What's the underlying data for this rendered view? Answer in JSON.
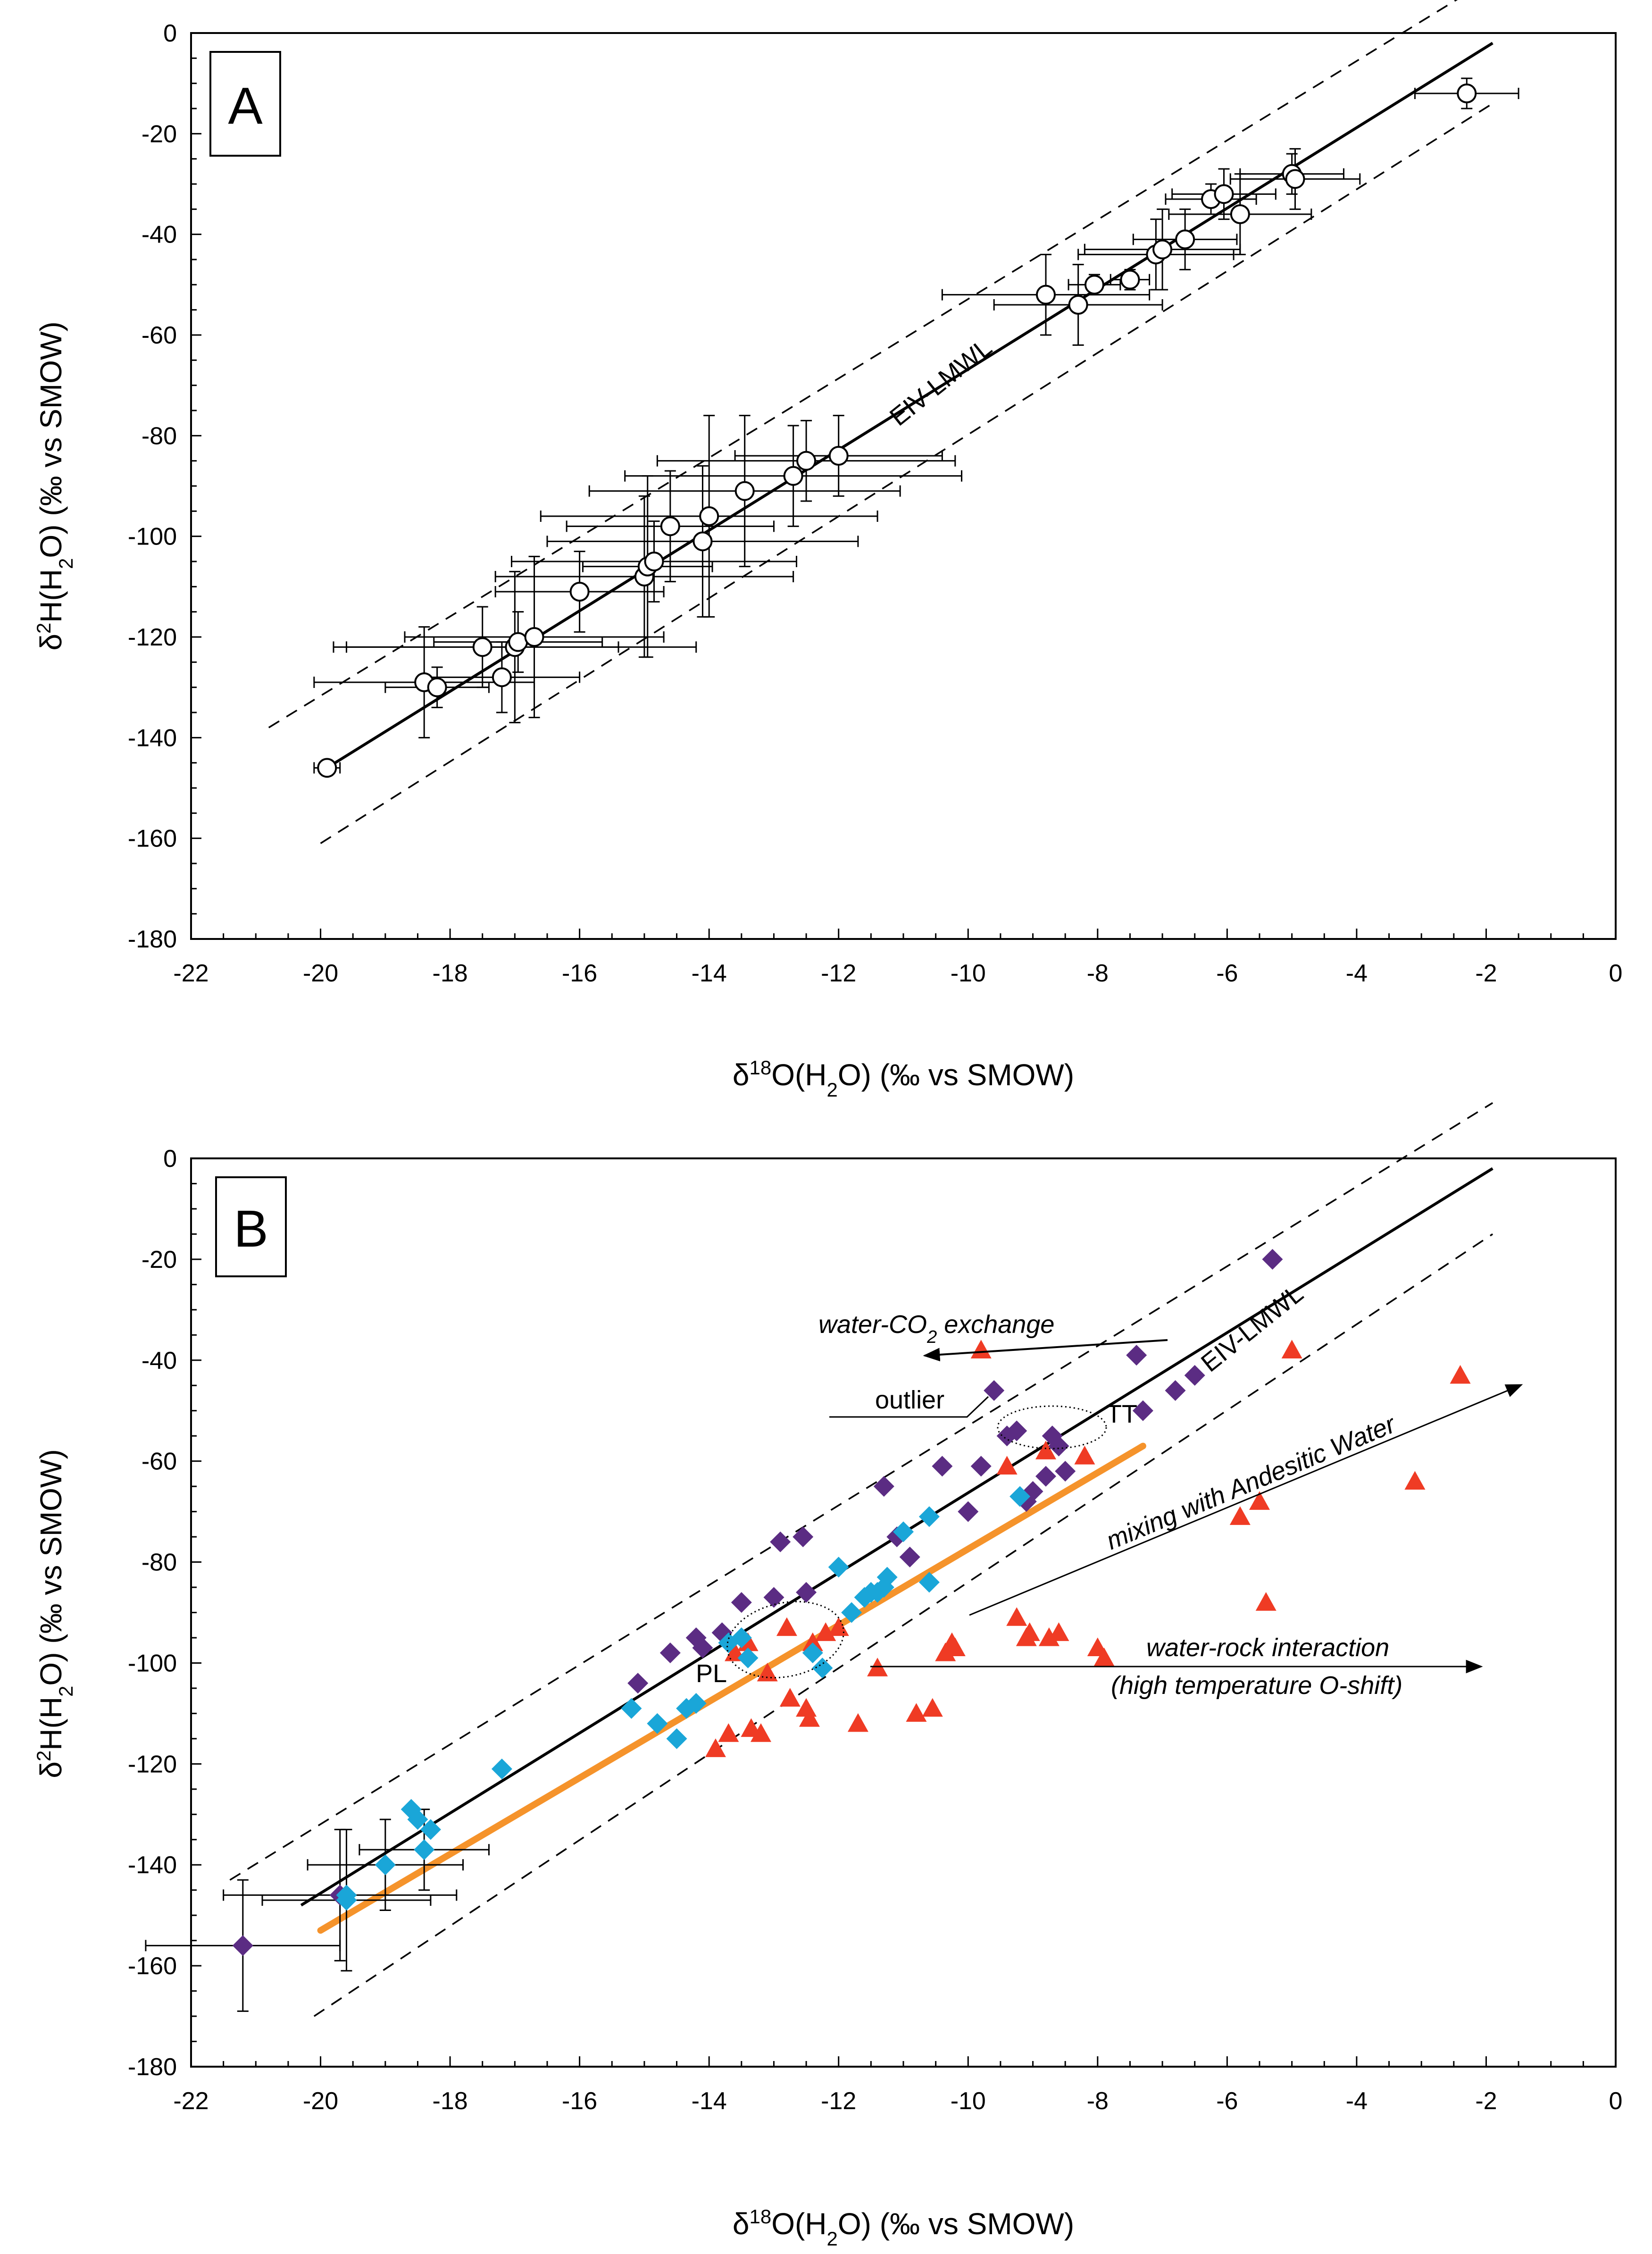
{
  "colors": {
    "black": "#000000",
    "purple": "#5b2c83",
    "cyan": "#1aa6d8",
    "red": "#ef3b24",
    "orange": "#f5932b",
    "white": "#ffffff"
  },
  "chart_data": [
    {
      "id": "A",
      "type": "scatter",
      "panel_label": "A",
      "xlabel": "δ18O(H2O) (‰ vs SMOW)",
      "ylabel": "δ2H(H2O) (‰ vs SMOW)",
      "xlim": [
        -22,
        0
      ],
      "ylim": [
        -180,
        0
      ],
      "x_ticks": [
        -22,
        -20,
        -18,
        -16,
        -14,
        -12,
        -10,
        -8,
        -6,
        -4,
        -2,
        0
      ],
      "y_ticks": [
        0,
        -20,
        -40,
        -60,
        -80,
        -100,
        -120,
        -140,
        -160,
        -180
      ],
      "legend": "none",
      "lmwl_label": "EIV-LMWL",
      "lmwl": {
        "x1": -19.9,
        "y1": -146,
        "x2": -1.9,
        "y2": -2
      },
      "band_upper": {
        "x1": -20.8,
        "y1": -138,
        "x2": -1.9,
        "y2": 11
      },
      "band_lower": {
        "x1": -20,
        "y1": -161,
        "x2": -1.9,
        "y2": -14
      },
      "points": [
        {
          "x": -19.9,
          "y": -146,
          "ex": 0.2,
          "ey": 1.5
        },
        {
          "x": -18.4,
          "y": -129,
          "ex": 1.7,
          "ey": 11
        },
        {
          "x": -18.2,
          "y": -130,
          "ex": 0.8,
          "ey": 4
        },
        {
          "x": -17.5,
          "y": -122,
          "ex": 2.1,
          "ey": 8
        },
        {
          "x": -17.2,
          "y": -128,
          "ex": 1.2,
          "ey": 7
        },
        {
          "x": -17.0,
          "y": -122,
          "ex": 2.8,
          "ey": 15
        },
        {
          "x": -16.95,
          "y": -121,
          "ex": 1.3,
          "ey": 6
        },
        {
          "x": -16.7,
          "y": -120,
          "ex": 2.0,
          "ey": 16
        },
        {
          "x": -16.0,
          "y": -111,
          "ex": 1.3,
          "ey": 8
        },
        {
          "x": -15.0,
          "y": -108,
          "ex": 2.3,
          "ey": 16
        },
        {
          "x": -14.95,
          "y": -106,
          "ex": 1.0,
          "ey": 18
        },
        {
          "x": -14.85,
          "y": -105,
          "ex": 2.2,
          "ey": 8
        },
        {
          "x": -14.6,
          "y": -98,
          "ex": 1.6,
          "ey": 11
        },
        {
          "x": -14.1,
          "y": -101,
          "ex": 2.4,
          "ey": 15
        },
        {
          "x": -14.0,
          "y": -96,
          "ex": 2.6,
          "ey": 20
        },
        {
          "x": -13.45,
          "y": -91,
          "ex": 2.4,
          "ey": 15
        },
        {
          "x": -12.7,
          "y": -88,
          "ex": 2.6,
          "ey": 10
        },
        {
          "x": -12.5,
          "y": -85,
          "ex": 2.3,
          "ey": 8
        },
        {
          "x": -12.0,
          "y": -84,
          "ex": 1.6,
          "ey": 8
        },
        {
          "x": -8.8,
          "y": -52,
          "ex": 1.6,
          "ey": 8
        },
        {
          "x": -8.3,
          "y": -54,
          "ex": 1.3,
          "ey": 8
        },
        {
          "x": -8.05,
          "y": -50,
          "ex": 0.4,
          "ey": 2
        },
        {
          "x": -7.5,
          "y": -49,
          "ex": 0.3,
          "ey": 2
        },
        {
          "x": -7.1,
          "y": -44,
          "ex": 1.2,
          "ey": 7
        },
        {
          "x": -7.0,
          "y": -43,
          "ex": 1.2,
          "ey": 8
        },
        {
          "x": -6.65,
          "y": -41,
          "ex": 0.8,
          "ey": 6
        },
        {
          "x": -6.25,
          "y": -33,
          "ex": 0.7,
          "ey": 3
        },
        {
          "x": -6.05,
          "y": -32,
          "ex": 0.8,
          "ey": 5
        },
        {
          "x": -5.8,
          "y": -36,
          "ex": 1.1,
          "ey": 8
        },
        {
          "x": -5.0,
          "y": -28,
          "ex": 0.8,
          "ey": 4
        },
        {
          "x": -4.95,
          "y": -29,
          "ex": 1.0,
          "ey": 6
        },
        {
          "x": -2.3,
          "y": -12,
          "ex": 0.8,
          "ey": 3
        }
      ]
    },
    {
      "id": "B",
      "type": "scatter",
      "panel_label": "B",
      "xlabel": "δ18O(H2O) (‰ vs SMOW)",
      "ylabel": "δ2H(H2O) (‰ vs SMOW)",
      "xlim": [
        -22,
        0
      ],
      "ylim": [
        -180,
        0
      ],
      "x_ticks": [
        -22,
        -20,
        -18,
        -16,
        -14,
        -12,
        -10,
        -8,
        -6,
        -4,
        -2,
        0
      ],
      "y_ticks": [
        0,
        -20,
        -40,
        -60,
        -80,
        -100,
        -120,
        -140,
        -160,
        -180
      ],
      "legend": "none",
      "lmwl_label": "EIV-LMWL",
      "lmwl": {
        "x1": -20.3,
        "y1": -148,
        "x2": -1.9,
        "y2": -2
      },
      "band_upper": {
        "x1": -21.4,
        "y1": -143,
        "x2": -1.9,
        "y2": 11
      },
      "band_lower": {
        "x1": -20.1,
        "y1": -170,
        "x2": -1.9,
        "y2": -15
      },
      "orange_line": {
        "x1": -20.0,
        "y1": -153,
        "x2": -7.3,
        "y2": -57
      },
      "annotations": {
        "co2": "water-CO",
        "co2_sub": "2",
        "co2_tail": " exchange",
        "outlier": "outlier",
        "andesitic": "mixing with Andesitic Water",
        "rock1": "water-rock interaction",
        "rock2": "(high temperature O-shift)",
        "tt": "TT",
        "pl": "PL"
      },
      "purple_points": [
        {
          "x": -21.2,
          "y": -156,
          "ex": 1.5,
          "ey": 13
        },
        {
          "x": -19.7,
          "y": -146,
          "ex": 1.8,
          "ey": 13
        },
        {
          "x": -15.1,
          "y": -104
        },
        {
          "x": -14.6,
          "y": -98
        },
        {
          "x": -14.2,
          "y": -95
        },
        {
          "x": -14.1,
          "y": -97
        },
        {
          "x": -13.8,
          "y": -94
        },
        {
          "x": -13.5,
          "y": -88
        },
        {
          "x": -13.0,
          "y": -87
        },
        {
          "x": -12.9,
          "y": -76
        },
        {
          "x": -12.55,
          "y": -75
        },
        {
          "x": -12.5,
          "y": -86
        },
        {
          "x": -11.3,
          "y": -65
        },
        {
          "x": -11.1,
          "y": -75
        },
        {
          "x": -10.9,
          "y": -79
        },
        {
          "x": -10.4,
          "y": -61
        },
        {
          "x": -10.0,
          "y": -70
        },
        {
          "x": -9.8,
          "y": -61
        },
        {
          "x": -9.6,
          "y": -46
        },
        {
          "x": -9.4,
          "y": -55
        },
        {
          "x": -9.25,
          "y": -54
        },
        {
          "x": -9.1,
          "y": -68
        },
        {
          "x": -9.0,
          "y": -66
        },
        {
          "x": -8.8,
          "y": -63
        },
        {
          "x": -8.7,
          "y": -55
        },
        {
          "x": -8.6,
          "y": -57
        },
        {
          "x": -8.5,
          "y": -62
        },
        {
          "x": -7.4,
          "y": -39
        },
        {
          "x": -7.3,
          "y": -50
        },
        {
          "x": -6.8,
          "y": -46
        },
        {
          "x": -6.5,
          "y": -43
        },
        {
          "x": -5.3,
          "y": -20
        }
      ],
      "cyan_points": [
        {
          "x": -19.6,
          "y": -146
        },
        {
          "x": -19.6,
          "y": -147,
          "ex": 1.3,
          "ey": 14
        },
        {
          "x": -19.0,
          "y": -140,
          "ex": 1.2,
          "ey": 9
        },
        {
          "x": -18.6,
          "y": -129
        },
        {
          "x": -18.5,
          "y": -131
        },
        {
          "x": -18.4,
          "y": -137,
          "ex": 1.0,
          "ey": 8
        },
        {
          "x": -18.3,
          "y": -133
        },
        {
          "x": -17.2,
          "y": -121
        },
        {
          "x": -15.2,
          "y": -109
        },
        {
          "x": -14.8,
          "y": -112
        },
        {
          "x": -14.5,
          "y": -115
        },
        {
          "x": -14.35,
          "y": -109
        },
        {
          "x": -14.2,
          "y": -108
        },
        {
          "x": -13.7,
          "y": -96
        },
        {
          "x": -13.5,
          "y": -95
        },
        {
          "x": -13.4,
          "y": -99
        },
        {
          "x": -12.4,
          "y": -98
        },
        {
          "x": -12.25,
          "y": -101
        },
        {
          "x": -12.0,
          "y": -81
        },
        {
          "x": -11.8,
          "y": -90
        },
        {
          "x": -11.6,
          "y": -87
        },
        {
          "x": -11.5,
          "y": -86
        },
        {
          "x": -11.4,
          "y": -86
        },
        {
          "x": -11.3,
          "y": -85
        },
        {
          "x": -11.25,
          "y": -83
        },
        {
          "x": -11.0,
          "y": -74
        },
        {
          "x": -10.6,
          "y": -71
        },
        {
          "x": -10.6,
          "y": -84
        },
        {
          "x": -9.2,
          "y": -67
        }
      ],
      "red_points": [
        {
          "x": -13.9,
          "y": -117
        },
        {
          "x": -13.7,
          "y": -114
        },
        {
          "x": -13.6,
          "y": -98
        },
        {
          "x": -13.4,
          "y": -96
        },
        {
          "x": -13.35,
          "y": -113
        },
        {
          "x": -13.2,
          "y": -114
        },
        {
          "x": -13.1,
          "y": -102
        },
        {
          "x": -12.8,
          "y": -93
        },
        {
          "x": -12.75,
          "y": -107
        },
        {
          "x": -12.5,
          "y": -109
        },
        {
          "x": -12.45,
          "y": -111
        },
        {
          "x": -12.4,
          "y": -96
        },
        {
          "x": -12.2,
          "y": -94
        },
        {
          "x": -12.0,
          "y": -93
        },
        {
          "x": -11.7,
          "y": -112
        },
        {
          "x": -11.4,
          "y": -101
        },
        {
          "x": -10.8,
          "y": -110
        },
        {
          "x": -10.55,
          "y": -109
        },
        {
          "x": -10.35,
          "y": -98
        },
        {
          "x": -10.25,
          "y": -96
        },
        {
          "x": -10.2,
          "y": -97
        },
        {
          "x": -9.8,
          "y": -38
        },
        {
          "x": -9.4,
          "y": -61
        },
        {
          "x": -9.25,
          "y": -91
        },
        {
          "x": -9.1,
          "y": -95
        },
        {
          "x": -9.05,
          "y": -94
        },
        {
          "x": -8.8,
          "y": -58
        },
        {
          "x": -8.75,
          "y": -95
        },
        {
          "x": -8.6,
          "y": -94
        },
        {
          "x": -8.2,
          "y": -59
        },
        {
          "x": -8.0,
          "y": -97
        },
        {
          "x": -7.9,
          "y": -99
        },
        {
          "x": -5.8,
          "y": -71
        },
        {
          "x": -5.5,
          "y": -68
        },
        {
          "x": -5.4,
          "y": -88
        },
        {
          "x": -5.0,
          "y": -38
        },
        {
          "x": -3.1,
          "y": -64
        },
        {
          "x": -2.4,
          "y": -43
        }
      ]
    }
  ]
}
